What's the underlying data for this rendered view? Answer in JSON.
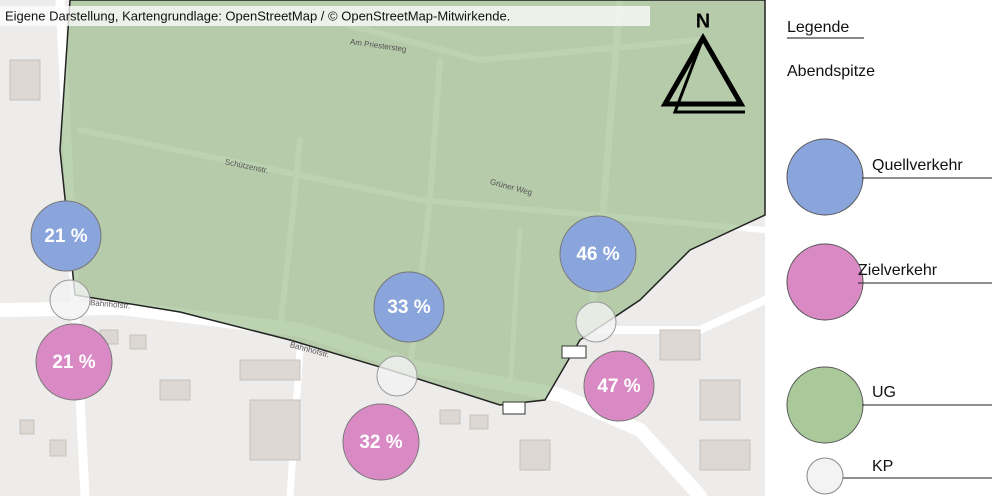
{
  "attribution": "Eigene Darstellung, Kartengrundlage: OpenStreetMap / © OpenStreetMap-Mitwirkende.",
  "north": "N",
  "legend": {
    "title": "Legende",
    "subtitle": "Abendspitze",
    "items": [
      "Quellverkehr",
      "Zielverkehr",
      "UG",
      "KP"
    ]
  },
  "circles": {
    "quellverkehr": [
      "21 %",
      "33 %",
      "46 %"
    ],
    "zielverkehr": [
      "21 %",
      "32 %",
      "47 %"
    ]
  }
}
